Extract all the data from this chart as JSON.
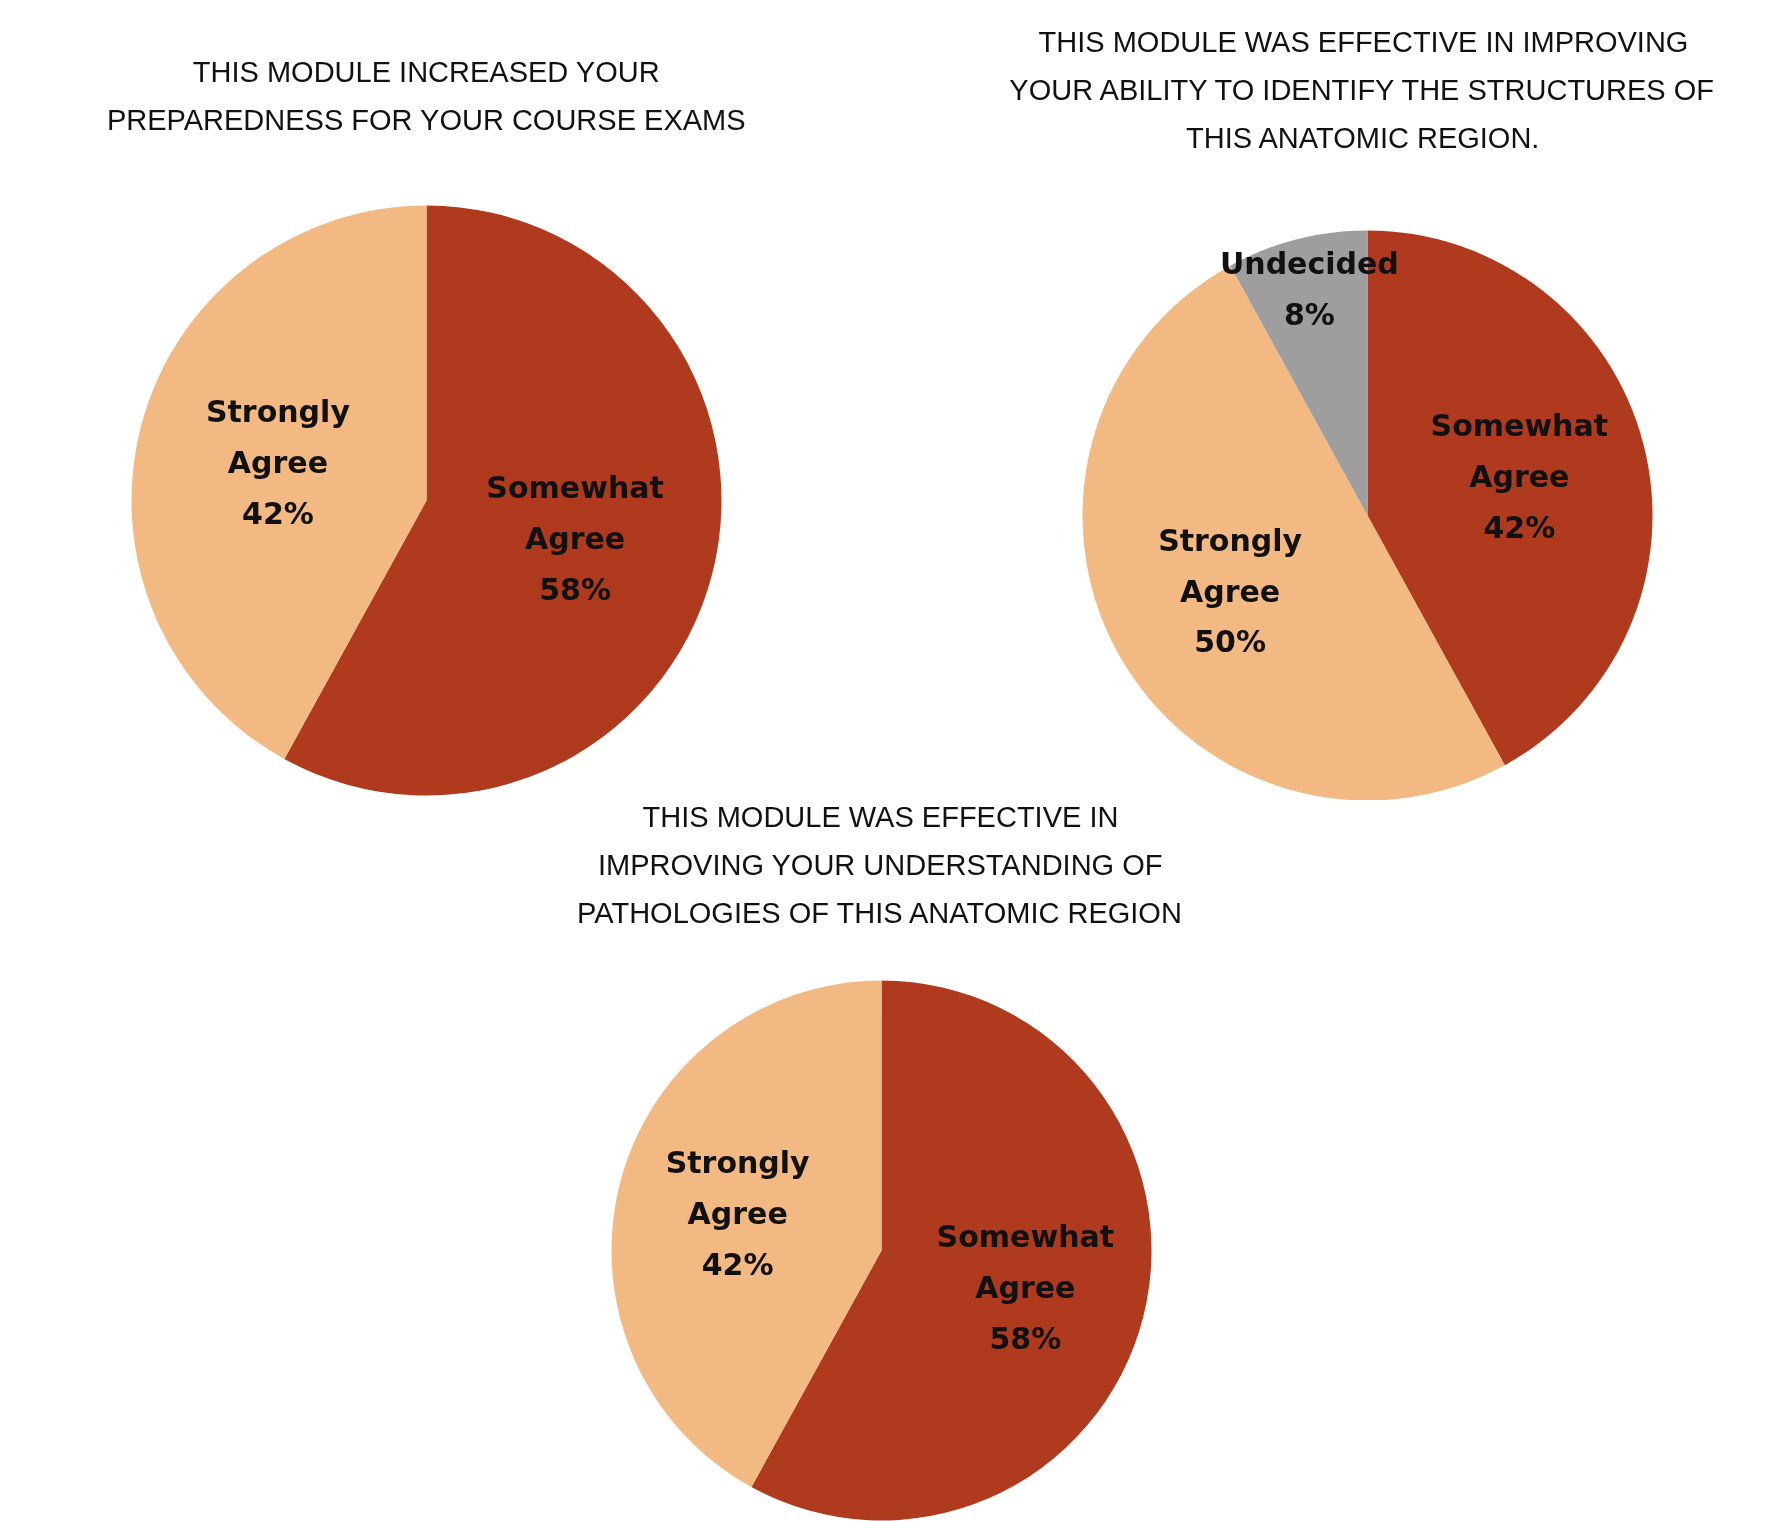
{
  "chart_data": [
    {
      "type": "pie",
      "title": "THIS MODULE INCREASED YOUR\nPREPAREDNESS FOR YOUR COURSE EXAMS",
      "categories": [
        "Somewhat Agree",
        "Strongly Agree"
      ],
      "values": [
        58,
        42
      ],
      "colors": [
        "#b03a1e",
        "#f3b983"
      ],
      "value_labels": [
        "58%",
        "42%"
      ]
    },
    {
      "type": "pie",
      "title": "THIS MODULE WAS EFFECTIVE IN IMPROVING\nYOUR ABILITY TO IDENTIFY THE STRUCTURES OF\nTHIS ANATOMIC REGION.",
      "categories": [
        "Somewhat Agree",
        "Strongly Agree",
        "Undecided"
      ],
      "values": [
        42,
        50,
        8
      ],
      "colors": [
        "#b03a1e",
        "#f3b983",
        "#9e9e9e"
      ],
      "value_labels": [
        "42%",
        "50%",
        "8%"
      ]
    },
    {
      "type": "pie",
      "title": "THIS MODULE WAS EFFECTIVE IN\nIMPROVING YOUR UNDERSTANDING OF\nPATHOLOGIES OF THIS ANATOMIC REGION",
      "categories": [
        "Somewhat Agree",
        "Strongly Agree"
      ],
      "values": [
        58,
        42
      ],
      "colors": [
        "#b03a1e",
        "#f3b983"
      ],
      "value_labels": [
        "58%",
        "42%"
      ]
    }
  ]
}
